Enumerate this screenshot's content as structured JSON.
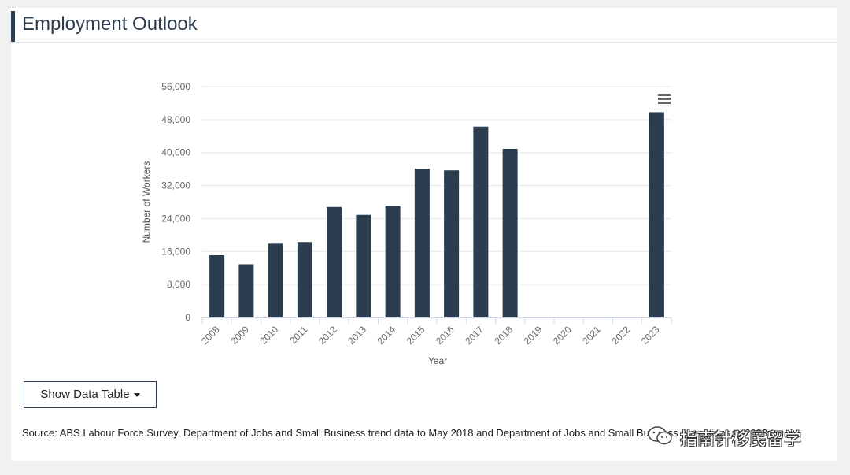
{
  "header": {
    "title": "Employment Outlook"
  },
  "chart_data": {
    "type": "bar",
    "categories": [
      "2008",
      "2009",
      "2010",
      "2011",
      "2012",
      "2013",
      "2014",
      "2015",
      "2016",
      "2017",
      "2018",
      "2019",
      "2020",
      "2021",
      "2022",
      "2023"
    ],
    "values": [
      15100,
      12900,
      17900,
      18300,
      26800,
      24900,
      27100,
      36100,
      35700,
      46300,
      40900,
      null,
      null,
      null,
      null,
      49800
    ],
    "xlabel": "Year",
    "ylabel": "Number of Workers",
    "ylim": [
      0,
      56000
    ],
    "yticks": [
      0,
      8000,
      16000,
      24000,
      32000,
      40000,
      48000,
      56000
    ],
    "ytick_labels": [
      "0",
      "8,000",
      "16,000",
      "24,000",
      "32,000",
      "40,000",
      "48,000",
      "56,000"
    ],
    "grid": true,
    "bar_color": "#2b3d4f"
  },
  "controls": {
    "data_table_label": "Show Data Table"
  },
  "source": "Source: ABS Labour Force Survey, Department of Jobs and Small Business trend data to May 2018 and Department of Jobs and Small Business projections to 2023.",
  "watermark": {
    "text": "指南针移民留学"
  },
  "icons": {
    "menu": "hamburger-menu-icon",
    "dropdown": "caret-down-icon"
  }
}
